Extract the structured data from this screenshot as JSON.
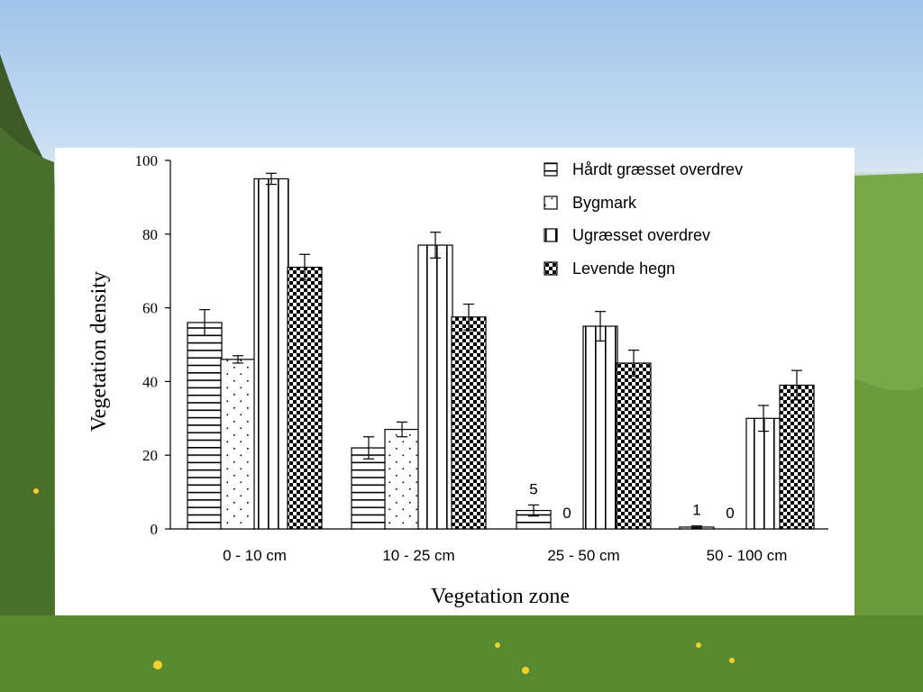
{
  "chart_data": {
    "type": "bar",
    "xlabel": "Vegetation zone",
    "ylabel": "Vegetation density",
    "ylim": [
      0,
      100
    ],
    "yticks": [
      0,
      20,
      40,
      60,
      80,
      100
    ],
    "grid": false,
    "legend_position": "top-right",
    "categories": [
      "0 - 10 cm",
      "10 - 25 cm",
      "25 - 50 cm",
      "50 - 100 cm"
    ],
    "series": [
      {
        "name": "Hårdt græsset overdrev",
        "pattern": "horizontal-lines",
        "values": [
          56,
          22,
          5,
          0.5
        ],
        "errors": [
          3.5,
          3,
          1.5,
          0.3
        ]
      },
      {
        "name": "Bygmark",
        "pattern": "dots",
        "values": [
          46,
          27,
          0,
          0
        ],
        "errors": [
          1,
          2,
          0,
          0
        ]
      },
      {
        "name": "Ugræsset overdrev",
        "pattern": "vertical-lines",
        "values": [
          95,
          77,
          55,
          30
        ],
        "errors": [
          1.5,
          3.5,
          4,
          3.5
        ]
      },
      {
        "name": "Levende hegn",
        "pattern": "checkerboard",
        "values": [
          71,
          57.5,
          45,
          39
        ],
        "errors": [
          3.5,
          3.5,
          3.5,
          4
        ]
      }
    ],
    "data_labels": [
      {
        "category": 2,
        "series": 0,
        "text": "5"
      },
      {
        "category": 2,
        "series": 1,
        "text": "0"
      },
      {
        "category": 3,
        "series": 0,
        "text": "1"
      },
      {
        "category": 3,
        "series": 1,
        "text": "0"
      }
    ]
  }
}
